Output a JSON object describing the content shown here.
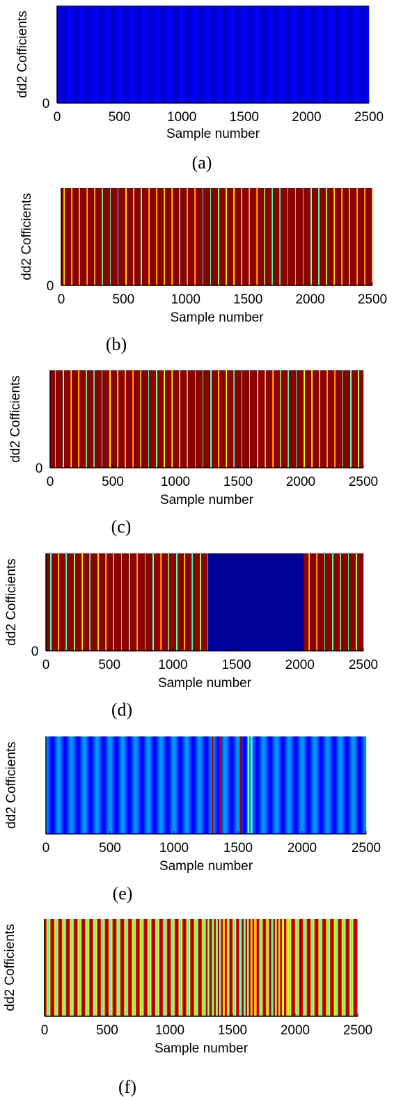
{
  "figure": {
    "colormap": [
      "#00008f",
      "#0000ff",
      "#00ffff",
      "#ffff00",
      "#ff0000",
      "#800000"
    ],
    "charts": [
      {
        "caption": "(a)",
        "type": "heatmap",
        "xlabel": "Sample number",
        "ylabel": "dd2 Cofficients",
        "xlim": [
          0,
          2500
        ],
        "xticks": [
          0,
          500,
          1000,
          1500,
          2000,
          2500
        ],
        "xtick_labels": [
          "0",
          "500",
          "1000",
          "1500",
          "2000",
          "2500"
        ],
        "yticks": [
          0
        ],
        "ytick_labels": [
          "0"
        ],
        "pattern": {
          "kind": "smooth",
          "segments": [
            {
              "from": 0,
              "to": 2500,
              "period": 100,
              "low": 0.1,
              "high": 0.2
            }
          ]
        }
      },
      {
        "caption": "(b)",
        "type": "heatmap",
        "xlabel": "Sample number",
        "ylabel": "dd2 Cofficients",
        "xlim": [
          0,
          2500
        ],
        "xticks": [
          0,
          500,
          1000,
          1500,
          2000,
          2500
        ],
        "xtick_labels": [
          "0",
          "500",
          "1000",
          "1500",
          "2000",
          "2500"
        ],
        "yticks": [
          0
        ],
        "ytick_labels": [
          "0"
        ],
        "pattern": {
          "kind": "spikes",
          "base": 0.98,
          "segments": [
            {
              "from": 0,
              "to": 2500,
              "period": 62,
              "offset": 20,
              "spike_a": 0.45,
              "spike_b": 0.62
            }
          ]
        }
      },
      {
        "caption": "(c)",
        "type": "heatmap",
        "xlabel": "Sample number",
        "ylabel": "dd2 Cofficients",
        "xlim": [
          0,
          2500
        ],
        "xticks": [
          0,
          500,
          1000,
          1500,
          2000,
          2500
        ],
        "xtick_labels": [
          "0",
          "500",
          "1000",
          "1500",
          "2000",
          "2500"
        ],
        "yticks": [
          0
        ],
        "ytick_labels": [
          "0"
        ],
        "pattern": {
          "kind": "spikes",
          "base": 0.98,
          "segments": [
            {
              "from": 0,
              "to": 2500,
              "period": 62,
              "offset": 40,
              "spike_a": 0.45,
              "spike_b": 0.6
            }
          ]
        }
      },
      {
        "caption": "(d)",
        "type": "heatmap",
        "xlabel": "Sample number",
        "ylabel": "dd2 Cofficients",
        "xlim": [
          0,
          2500
        ],
        "xticks": [
          0,
          500,
          1000,
          1500,
          2000,
          2500
        ],
        "xtick_labels": [
          "0",
          "500",
          "1000",
          "1500",
          "2000",
          "2500"
        ],
        "yticks": [
          0
        ],
        "ytick_labels": [
          "0"
        ],
        "pattern": {
          "kind": "spikes",
          "base": 0.98,
          "segments": [
            {
              "from": 0,
              "to": 1280,
              "period": 62,
              "offset": 35,
              "spike_a": 0.45,
              "spike_b": 0.62
            },
            {
              "from": 1280,
              "to": 2030,
              "flat": 0.02
            },
            {
              "from": 2030,
              "to": 2500,
              "period": 62,
              "offset": 40,
              "spike_a": 0.45,
              "spike_b": 0.62
            }
          ]
        }
      },
      {
        "caption": "(e)",
        "type": "heatmap",
        "xlabel": "Sample number",
        "ylabel": "dd2 Cofficients",
        "xlim": [
          0,
          2500
        ],
        "xticks": [
          0,
          500,
          1000,
          1500,
          2000,
          2500
        ],
        "xtick_labels": [
          "0",
          "500",
          "1000",
          "1500",
          "2000",
          "2500"
        ],
        "yticks": [],
        "ytick_labels": [],
        "pattern": {
          "kind": "smooth",
          "segments": [
            {
              "from": 0,
              "to": 2500,
              "period": 100,
              "low": 0.2,
              "high": 0.32
            }
          ],
          "lines": [
            {
              "x": 1300,
              "v": 0.95
            },
            {
              "x": 1360,
              "v": 0.9
            },
            {
              "x": 1520,
              "v": 0.95
            },
            {
              "x": 1580,
              "v": 0.5
            },
            {
              "x": 1605,
              "v": 0.45
            }
          ]
        }
      },
      {
        "caption": "(f)",
        "type": "heatmap",
        "xlabel": "Sample number",
        "ylabel": "dd2 Cofficients",
        "xlim": [
          0,
          2500
        ],
        "xticks": [
          0,
          500,
          1000,
          1500,
          2000,
          2500
        ],
        "xtick_labels": [
          "0",
          "500",
          "1000",
          "1500",
          "2000",
          "2500"
        ],
        "yticks": [],
        "ytick_labels": [],
        "pattern": {
          "kind": "wave",
          "segments": [
            {
              "from": 0,
              "to": 2500,
              "period": 62
            }
          ],
          "noisy_from": 1300,
          "noisy_to": 1950
        }
      }
    ]
  }
}
